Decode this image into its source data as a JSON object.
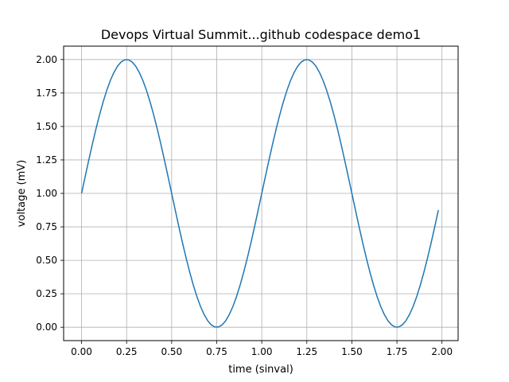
{
  "chart_data": {
    "type": "line",
    "title": "Devops Virtual Summit...github codespace demo1",
    "xlabel": "time (sinval)",
    "ylabel": "voltage (mV)",
    "xlim": [
      -0.0995,
      2.0895
    ],
    "ylim": [
      -0.1,
      2.1
    ],
    "xticks": [
      0.0,
      0.25,
      0.5,
      0.75,
      1.0,
      1.25,
      1.5,
      1.75,
      2.0
    ],
    "xtick_labels": [
      "0.00",
      "0.25",
      "0.50",
      "0.75",
      "1.00",
      "1.25",
      "1.50",
      "1.75",
      "2.00"
    ],
    "yticks": [
      0.0,
      0.25,
      0.5,
      0.75,
      1.0,
      1.25,
      1.5,
      1.75,
      2.0
    ],
    "ytick_labels": [
      "0.00",
      "0.25",
      "0.50",
      "0.75",
      "1.00",
      "1.25",
      "1.50",
      "1.75",
      "2.00"
    ],
    "grid": true,
    "series": [
      {
        "color": "#1f77b4",
        "x": [
          0.0,
          0.02,
          0.04,
          0.06,
          0.08,
          0.1,
          0.12,
          0.14,
          0.16,
          0.18,
          0.2,
          0.22,
          0.24,
          0.26,
          0.28,
          0.3,
          0.32,
          0.34,
          0.36,
          0.38,
          0.4,
          0.42,
          0.44,
          0.46,
          0.48,
          0.5,
          0.52,
          0.54,
          0.56,
          0.58,
          0.6,
          0.62,
          0.64,
          0.66,
          0.68,
          0.7,
          0.72,
          0.74,
          0.76,
          0.78,
          0.8,
          0.82,
          0.84,
          0.86,
          0.88,
          0.9,
          0.92,
          0.94,
          0.96,
          0.98,
          1.0,
          1.02,
          1.04,
          1.06,
          1.08,
          1.1,
          1.12,
          1.14,
          1.16,
          1.18,
          1.2,
          1.22,
          1.24,
          1.26,
          1.28,
          1.3,
          1.32,
          1.34,
          1.36,
          1.38,
          1.4,
          1.42,
          1.44,
          1.46,
          1.48,
          1.5,
          1.52,
          1.54,
          1.56,
          1.58,
          1.6,
          1.62,
          1.64,
          1.66,
          1.68,
          1.7,
          1.72,
          1.74,
          1.76,
          1.78,
          1.8,
          1.82,
          1.84,
          1.86,
          1.88,
          1.9,
          1.92,
          1.94,
          1.96,
          1.98
        ],
        "y": [
          1.0,
          1.1253,
          1.2487,
          1.3681,
          1.4818,
          1.5878,
          1.6845,
          1.7705,
          1.8443,
          1.9048,
          1.9511,
          1.9823,
          1.998,
          1.998,
          1.9823,
          1.9511,
          1.9048,
          1.8443,
          1.7705,
          1.6845,
          1.5878,
          1.4818,
          1.3681,
          1.2487,
          1.1253,
          1.0,
          0.8747,
          0.7513,
          0.6319,
          0.5182,
          0.4122,
          0.3155,
          0.2295,
          0.1557,
          0.0952,
          0.0489,
          0.0177,
          0.002,
          0.002,
          0.0177,
          0.0489,
          0.0952,
          0.1557,
          0.2295,
          0.3155,
          0.4122,
          0.5182,
          0.6319,
          0.7513,
          0.8747,
          1.0,
          1.1253,
          1.2487,
          1.3681,
          1.4818,
          1.5878,
          1.6845,
          1.7705,
          1.8443,
          1.9048,
          1.9511,
          1.9823,
          1.998,
          1.998,
          1.9823,
          1.9511,
          1.9048,
          1.8443,
          1.7705,
          1.6845,
          1.5878,
          1.4818,
          1.3681,
          1.2487,
          1.1253,
          1.0,
          0.8747,
          0.7513,
          0.6319,
          0.5182,
          0.4122,
          0.3155,
          0.2295,
          0.1557,
          0.0952,
          0.0489,
          0.0177,
          0.002,
          0.002,
          0.0177,
          0.0489,
          0.0952,
          0.1557,
          0.2295,
          0.3155,
          0.4122,
          0.5182,
          0.6319,
          0.7513,
          0.8747
        ]
      }
    ]
  }
}
